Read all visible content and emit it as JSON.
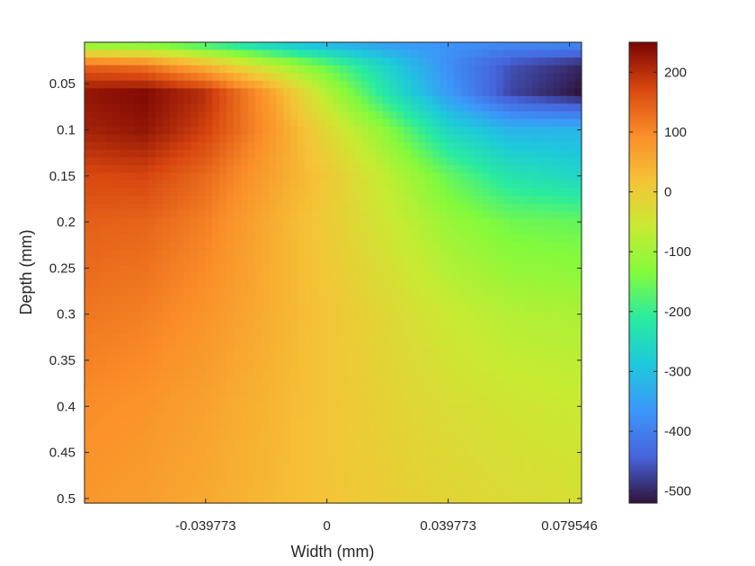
{
  "chart_data": {
    "type": "heatmap",
    "title": "",
    "xlabel": "Width (mm)",
    "ylabel": "Depth (mm)",
    "xlim": [
      -0.0795,
      0.0835
    ],
    "ylim": [
      0.005,
      0.505
    ],
    "y_reversed": true,
    "grid": false,
    "colormap": "turbo",
    "xticks": [
      -0.039773,
      0,
      0.039773,
      0.079546
    ],
    "xtick_labels": [
      "-0.039773",
      "0",
      "0.039773",
      "0.079546"
    ],
    "yticks": [
      0.05,
      0.1,
      0.15,
      0.2,
      0.25,
      0.3,
      0.35,
      0.4,
      0.45,
      0.5
    ],
    "ytick_labels": [
      "0.05",
      "0.1",
      "0.15",
      "0.2",
      "0.25",
      "0.3",
      "0.35",
      "0.4",
      "0.45",
      "0.5"
    ],
    "colorbar": {
      "range": [
        -520,
        250
      ],
      "ticks": [
        200,
        100,
        0,
        -100,
        -200,
        -300,
        -400,
        -500
      ],
      "tick_labels": [
        "200",
        "100",
        "0",
        "-100",
        "-200",
        "-300",
        "-400",
        "-500"
      ],
      "placement": "right"
    },
    "field": {
      "note_grid": "approximate reconstruction of the visible field",
      "x": [
        -0.0795,
        -0.06,
        -0.04,
        -0.02,
        0,
        0.02,
        0.04,
        0.06,
        0.0835
      ],
      "y": [
        0.005,
        0.03,
        0.06,
        0.1,
        0.15,
        0.2,
        0.3,
        0.4,
        0.505
      ],
      "values": [
        [
          -150,
          -160,
          -210,
          -280,
          -330,
          -360,
          -370,
          -380,
          -380
        ],
        [
          140,
          120,
          40,
          -60,
          -160,
          -270,
          -380,
          -460,
          -500
        ],
        [
          230,
          245,
          200,
          80,
          -80,
          -230,
          -360,
          -470,
          -520
        ],
        [
          215,
          230,
          180,
          90,
          -20,
          -130,
          -260,
          -320,
          -320
        ],
        [
          170,
          175,
          135,
          70,
          10,
          -70,
          -160,
          -230,
          -260
        ],
        [
          145,
          140,
          110,
          55,
          5,
          -50,
          -110,
          -150,
          -160
        ],
        [
          120,
          110,
          85,
          50,
          15,
          -20,
          -55,
          -80,
          -90
        ],
        [
          95,
          85,
          65,
          40,
          15,
          -10,
          -30,
          -45,
          -55
        ],
        [
          80,
          70,
          55,
          35,
          15,
          0,
          -15,
          -25,
          -35
        ]
      ]
    }
  }
}
